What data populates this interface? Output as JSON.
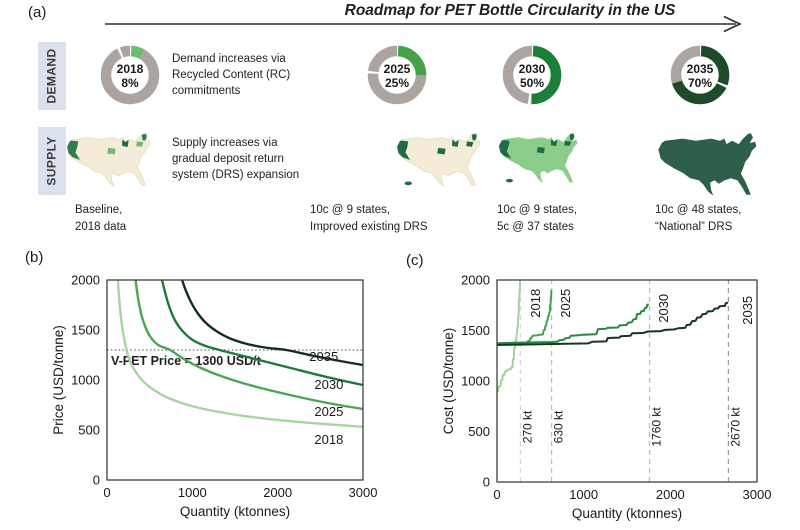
{
  "panel_a": {
    "label": "(a)",
    "title": "Roadmap for PET Bottle Circularity in the US",
    "demand_label": "DEMAND",
    "supply_label": "SUPPLY",
    "demand_description": "Demand increases via Recycled Content (RC) commitments",
    "supply_description": "Supply increases via gradual deposit return system (DRS) expansion",
    "ring_gray": "#aca4a0",
    "milestones": [
      {
        "year": "2018",
        "pct": 8,
        "pct_label": "8%",
        "slice_color": "#6abe6e",
        "caption": [
          "Baseline,",
          "2018 data"
        ],
        "map_style": "baseline"
      },
      {
        "year": "2025",
        "pct": 25,
        "pct_label": "25%",
        "slice_color": "#46a14b",
        "caption": [
          "10c @ 9 states,",
          "Improved existing DRS"
        ],
        "map_style": "few-dark"
      },
      {
        "year": "2030",
        "pct": 50,
        "pct_label": "50%",
        "slice_color": "#1b7f35",
        "caption": [
          "10c @ 9 states,",
          "5c @ 37 states"
        ],
        "map_style": "mostly-green"
      },
      {
        "year": "2035",
        "pct": 70,
        "pct_label": "70%",
        "slice_color": "#1d4b2a",
        "caption": [
          "10c @ 48 states,",
          "“National” DRS"
        ],
        "map_style": "all-dark"
      }
    ],
    "map_colors": {
      "cream": "#f4ecd7",
      "cream_edge": "#d9cfb0",
      "light_green": "#8ccd8a",
      "dark_green": "#1e6b46",
      "west_dark": "#2f7d4f",
      "mid_green": "#74b97a",
      "all_dark": "#2d5f49"
    }
  },
  "chart_data": [
    {
      "id": "b",
      "type": "line",
      "panel_label": "(b)",
      "smooth": true,
      "xlabel": "Quantity (ktonnes)",
      "ylabel": "Price (USD/tonne)",
      "xlim": [
        0,
        3000
      ],
      "ylim": [
        0,
        2000
      ],
      "xticks": [
        0,
        1000,
        2000,
        3000
      ],
      "yticks": [
        0,
        500,
        1000,
        1500,
        2000
      ],
      "reference_line": {
        "y": 1300,
        "label": "V-PET Price = 1300 USD/t",
        "color": "#444444"
      },
      "series": [
        {
          "name": "2018",
          "color": "#a6d79f",
          "label_at": [
            2600,
            400
          ],
          "points": [
            [
              128,
              2000
            ],
            [
              140,
              1850
            ],
            [
              155,
              1700
            ],
            [
              175,
              1550
            ],
            [
              200,
              1420
            ],
            [
              230,
              1300
            ],
            [
              270,
              1190
            ],
            [
              330,
              1090
            ],
            [
              420,
              990
            ],
            [
              550,
              900
            ],
            [
              720,
              820
            ],
            [
              950,
              750
            ],
            [
              1250,
              690
            ],
            [
              1650,
              635
            ],
            [
              2100,
              592
            ],
            [
              2550,
              560
            ],
            [
              3000,
              532
            ]
          ]
        },
        {
          "name": "2025",
          "color": "#4ca556",
          "label_at": [
            2600,
            680
          ],
          "points": [
            [
              335,
              2000
            ],
            [
              360,
              1840
            ],
            [
              395,
              1680
            ],
            [
              445,
              1540
            ],
            [
              510,
              1430
            ],
            [
              600,
              1350
            ],
            [
              740,
              1300
            ],
            [
              900,
              1210
            ],
            [
              1100,
              1120
            ],
            [
              1400,
              1020
            ],
            [
              1800,
              920
            ],
            [
              2300,
              820
            ],
            [
              2650,
              760
            ],
            [
              3000,
              710
            ]
          ]
        },
        {
          "name": "2030",
          "color": "#1d7a37",
          "label_at": [
            2600,
            950
          ],
          "points": [
            [
              645,
              2000
            ],
            [
              685,
              1860
            ],
            [
              735,
              1720
            ],
            [
              800,
              1590
            ],
            [
              885,
              1490
            ],
            [
              995,
              1405
            ],
            [
              1140,
              1345
            ],
            [
              1320,
              1300
            ],
            [
              1550,
              1250
            ],
            [
              1850,
              1185
            ],
            [
              2200,
              1110
            ],
            [
              2600,
              1025
            ],
            [
              3000,
              950
            ]
          ]
        },
        {
          "name": "2035",
          "color": "#142f1d",
          "label_at": [
            2540,
            1230
          ],
          "points": [
            [
              880,
              2000
            ],
            [
              930,
              1880
            ],
            [
              990,
              1770
            ],
            [
              1065,
              1665
            ],
            [
              1160,
              1570
            ],
            [
              1280,
              1490
            ],
            [
              1430,
              1420
            ],
            [
              1620,
              1365
            ],
            [
              1850,
              1325
            ],
            [
              2100,
              1300
            ],
            [
              2400,
              1245
            ],
            [
              2700,
              1195
            ],
            [
              3000,
              1150
            ]
          ]
        }
      ]
    },
    {
      "id": "c",
      "type": "step-line",
      "panel_label": "(c)",
      "smooth": false,
      "rotated_series_labels": true,
      "xlabel": "Quantity (ktonnes)",
      "ylabel": "Cost (USD/tonne)",
      "xlim": [
        0,
        3000
      ],
      "ylim": [
        0,
        2000
      ],
      "xticks": [
        0,
        1000,
        2000,
        3000
      ],
      "yticks": [
        0,
        500,
        1000,
        1500,
        2000
      ],
      "vlines": [
        {
          "x": 270,
          "label": "270 kt",
          "color": "#ccdcc6"
        },
        {
          "x": 630,
          "label": "630 kt",
          "color": "#8ed3c0"
        },
        {
          "x": 1760,
          "label": "1760 kt",
          "color": "#8ed3c0"
        },
        {
          "x": 2670,
          "label": "2670 kt",
          "color": "#9a9a9a"
        }
      ],
      "vline_label_cost": 545,
      "series": [
        {
          "name": "2018",
          "color": "#9fd49b",
          "label_at": [
            450,
            1770
          ],
          "points": [
            [
              0,
              895
            ],
            [
              15,
              900
            ],
            [
              20,
              948
            ],
            [
              40,
              952
            ],
            [
              45,
              1008
            ],
            [
              62,
              1012
            ],
            [
              66,
              1058
            ],
            [
              85,
              1062
            ],
            [
              90,
              1092
            ],
            [
              112,
              1096
            ],
            [
              118,
              1112
            ],
            [
              158,
              1116
            ],
            [
              163,
              1132
            ],
            [
              180,
              1136
            ],
            [
              184,
              1212
            ],
            [
              194,
              1216
            ],
            [
              198,
              1326
            ],
            [
              208,
              1330
            ],
            [
              212,
              1392
            ],
            [
              222,
              1396
            ],
            [
              226,
              1458
            ],
            [
              232,
              1462
            ],
            [
              236,
              1540
            ],
            [
              242,
              1544
            ],
            [
              246,
              1650
            ],
            [
              250,
              1654
            ],
            [
              253,
              1808
            ],
            [
              258,
              1812
            ],
            [
              260,
              1896
            ],
            [
              264,
              1900
            ],
            [
              266,
              2000
            ]
          ]
        },
        {
          "name": "2025",
          "color": "#45a351",
          "label_at": [
            795,
            1770
          ],
          "points": [
            [
              0,
              1368
            ],
            [
              120,
              1372
            ],
            [
              240,
              1376
            ],
            [
              330,
              1380
            ],
            [
              350,
              1384
            ],
            [
              360,
              1398
            ],
            [
              378,
              1402
            ],
            [
              385,
              1424
            ],
            [
              400,
              1428
            ],
            [
              408,
              1448
            ],
            [
              470,
              1452
            ],
            [
              480,
              1456
            ],
            [
              530,
              1460
            ],
            [
              538,
              1502
            ],
            [
              552,
              1506
            ],
            [
              557,
              1544
            ],
            [
              568,
              1548
            ],
            [
              573,
              1594
            ],
            [
              583,
              1598
            ],
            [
              588,
              1640
            ],
            [
              598,
              1644
            ],
            [
              603,
              1678
            ],
            [
              610,
              1682
            ],
            [
              613,
              1752
            ],
            [
              618,
              1756
            ],
            [
              621,
              1828
            ],
            [
              625,
              1832
            ],
            [
              627,
              1896
            ],
            [
              631,
              1902
            ]
          ]
        },
        {
          "name": "2030",
          "color": "#238b3e",
          "label_at": [
            1925,
            1720
          ],
          "points": [
            [
              0,
              1374
            ],
            [
              200,
              1378
            ],
            [
              400,
              1382
            ],
            [
              620,
              1386
            ],
            [
              700,
              1390
            ],
            [
              720,
              1404
            ],
            [
              770,
              1408
            ],
            [
              790,
              1424
            ],
            [
              835,
              1428
            ],
            [
              850,
              1448
            ],
            [
              945,
              1452
            ],
            [
              985,
              1458
            ],
            [
              1145,
              1462
            ],
            [
              1165,
              1514
            ],
            [
              1255,
              1518
            ],
            [
              1275,
              1526
            ],
            [
              1395,
              1530
            ],
            [
              1415,
              1550
            ],
            [
              1495,
              1554
            ],
            [
              1515,
              1578
            ],
            [
              1555,
              1582
            ],
            [
              1575,
              1610
            ],
            [
              1605,
              1614
            ],
            [
              1615,
              1662
            ],
            [
              1655,
              1666
            ],
            [
              1665,
              1690
            ],
            [
              1695,
              1694
            ],
            [
              1705,
              1722
            ],
            [
              1725,
              1726
            ],
            [
              1735,
              1754
            ],
            [
              1750,
              1760
            ]
          ]
        },
        {
          "name": "2035",
          "color": "#17351f",
          "label_at": [
            2895,
            1700
          ],
          "points": [
            [
              0,
              1356
            ],
            [
              250,
              1360
            ],
            [
              500,
              1364
            ],
            [
              800,
              1368
            ],
            [
              1050,
              1372
            ],
            [
              1100,
              1388
            ],
            [
              1260,
              1392
            ],
            [
              1280,
              1426
            ],
            [
              1410,
              1430
            ],
            [
              1430,
              1444
            ],
            [
              1540,
              1448
            ],
            [
              1560,
              1472
            ],
            [
              1690,
              1476
            ],
            [
              1740,
              1490
            ],
            [
              1890,
              1494
            ],
            [
              1940,
              1506
            ],
            [
              2040,
              1510
            ],
            [
              2090,
              1522
            ],
            [
              2170,
              1526
            ],
            [
              2190,
              1554
            ],
            [
              2230,
              1558
            ],
            [
              2250,
              1592
            ],
            [
              2290,
              1596
            ],
            [
              2310,
              1628
            ],
            [
              2350,
              1632
            ],
            [
              2370,
              1660
            ],
            [
              2410,
              1664
            ],
            [
              2430,
              1688
            ],
            [
              2490,
              1692
            ],
            [
              2510,
              1716
            ],
            [
              2550,
              1720
            ],
            [
              2570,
              1740
            ],
            [
              2630,
              1744
            ],
            [
              2640,
              1770
            ],
            [
              2665,
              1776
            ]
          ]
        }
      ]
    }
  ]
}
